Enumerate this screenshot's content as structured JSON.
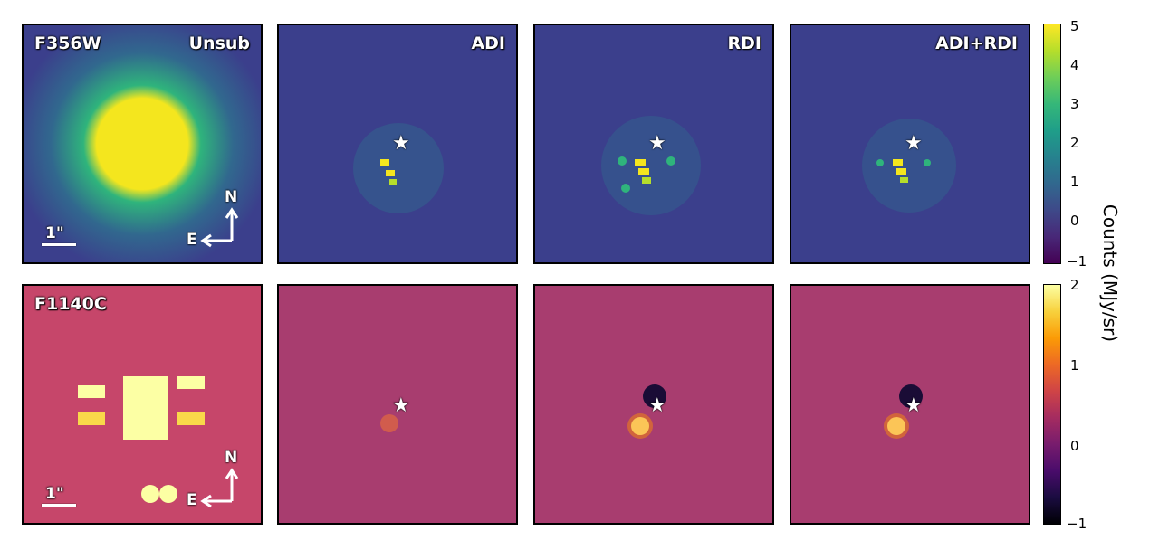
{
  "rows": [
    {
      "filter": "F356W",
      "methods": [
        "Unsub",
        "ADI",
        "RDI",
        "ADI+RDI"
      ],
      "colormap": "viridis",
      "colorbar_ticks": [
        "5",
        "4",
        "3",
        "2",
        "1",
        "0",
        "−1"
      ],
      "scale_label": "1\"",
      "compass_n": "N",
      "compass_e": "E"
    },
    {
      "filter": "F1140C",
      "methods": [
        "",
        "",
        "",
        ""
      ],
      "colormap": "inferno",
      "colorbar_ticks": [
        "2",
        "1",
        "0",
        "−1"
      ],
      "scale_label": "1\"",
      "compass_n": "N",
      "compass_e": "E"
    }
  ],
  "colorbar_label": "Counts (MJy/sr)",
  "star_symbol": "★",
  "colors": {
    "viridis_bg": "#3b3f8c",
    "viridis_bright": "#f4e61e",
    "inferno_bg": "#b5426b",
    "inferno_bright": "#fcffa4"
  }
}
